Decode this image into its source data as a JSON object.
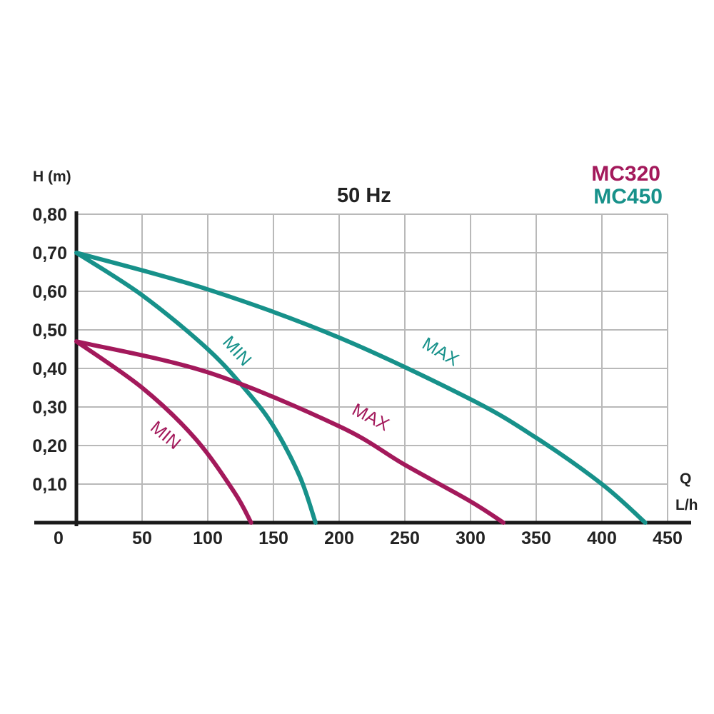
{
  "chart_data": {
    "type": "line",
    "title": "50 Hz",
    "xlabel": "Q",
    "xunit": "L/h",
    "ylabel": "H (m)",
    "xlim": [
      0,
      450
    ],
    "ylim": [
      0,
      0.8
    ],
    "x_ticks": [
      "50",
      "100",
      "150",
      "200",
      "250",
      "300",
      "350",
      "400",
      "450"
    ],
    "x_tick_values": [
      50,
      100,
      150,
      200,
      250,
      300,
      350,
      400,
      450
    ],
    "y_ticks": [
      "0,10",
      "0,20",
      "0,30",
      "0,40",
      "0,50",
      "0,60",
      "0,70",
      "0,80"
    ],
    "y_tick_values": [
      0.1,
      0.2,
      0.3,
      0.4,
      0.5,
      0.6,
      0.7,
      0.8
    ],
    "origin_label": "0",
    "grid": true,
    "legend": [
      {
        "name": "MC320",
        "color": "#a3195b"
      },
      {
        "name": "MC450",
        "color": "#17918a"
      }
    ],
    "series": [
      {
        "model": "MC450",
        "setting": "MAX",
        "label": "MAX",
        "color": "#17918a",
        "x": [
          0,
          100,
          200,
          300,
          350,
          400,
          433
        ],
        "y": [
          0.7,
          0.605,
          0.48,
          0.32,
          0.22,
          0.1,
          0.0
        ]
      },
      {
        "model": "MC450",
        "setting": "MIN",
        "label": "MIN",
        "color": "#17918a",
        "x": [
          0,
          50,
          100,
          130,
          150,
          170,
          182
        ],
        "y": [
          0.7,
          0.59,
          0.45,
          0.34,
          0.25,
          0.12,
          0.0
        ]
      },
      {
        "model": "MC320",
        "setting": "MAX",
        "label": "MAX",
        "color": "#a3195b",
        "x": [
          0,
          100,
          200,
          250,
          300,
          325
        ],
        "y": [
          0.47,
          0.39,
          0.25,
          0.15,
          0.055,
          0.0
        ]
      },
      {
        "model": "MC320",
        "setting": "MIN",
        "label": "MIN",
        "color": "#a3195b",
        "x": [
          0,
          50,
          90,
          120,
          133
        ],
        "y": [
          0.47,
          0.35,
          0.22,
          0.08,
          0.0
        ]
      }
    ]
  }
}
